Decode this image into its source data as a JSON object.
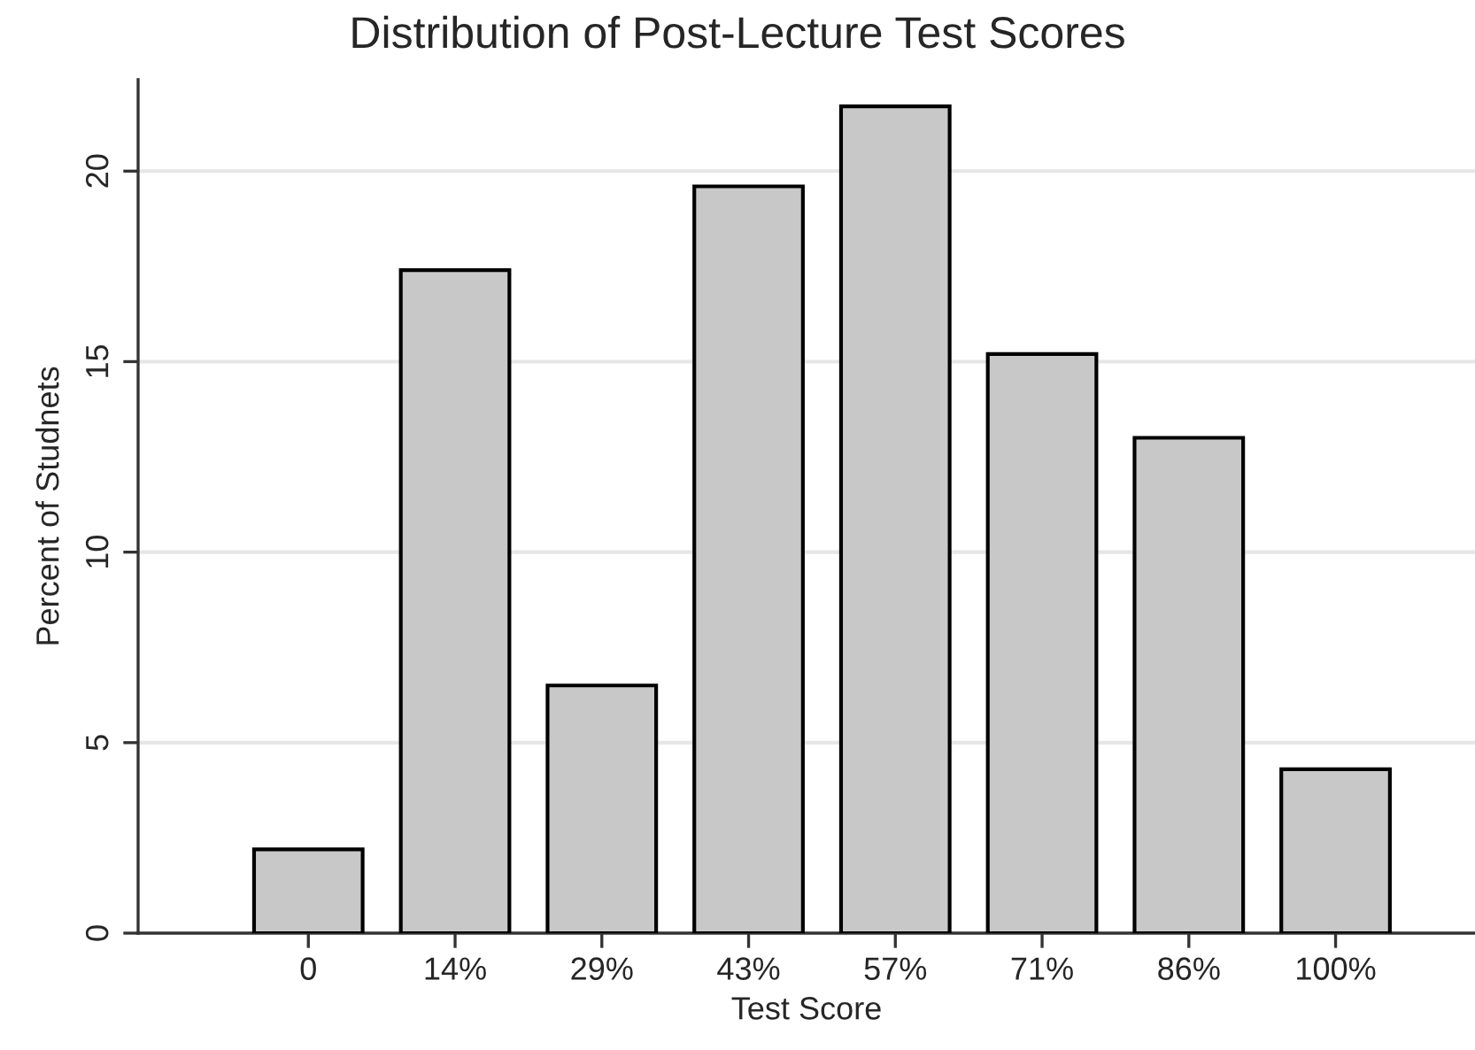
{
  "chart_data": {
    "type": "bar",
    "title": "Distribution of Post-Lecture Test Scores",
    "xlabel": "Test Score",
    "ylabel": "Percent of Studnets",
    "categories": [
      "0",
      "14%",
      "29%",
      "43%",
      "57%",
      "71%",
      "86%",
      "100%"
    ],
    "values": [
      2.2,
      17.4,
      6.5,
      19.6,
      21.7,
      15.2,
      13.0,
      4.3
    ],
    "color": "#c8c8c8",
    "ylim": [
      0,
      22.4
    ],
    "yticks": [
      0,
      5,
      10,
      15,
      20
    ],
    "grid": "y",
    "legend": false
  }
}
